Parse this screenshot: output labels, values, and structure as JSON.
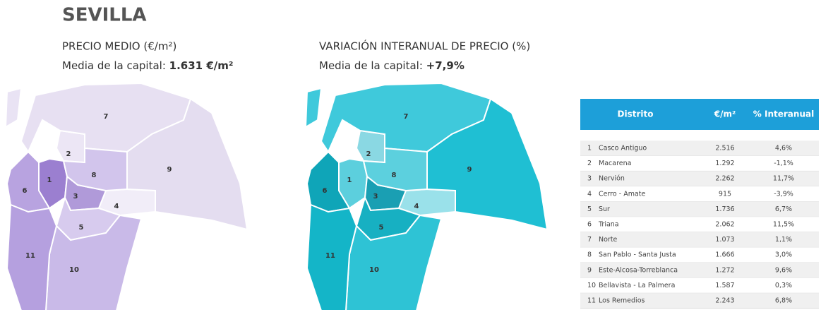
{
  "title": "SEVILLA",
  "price_map": {
    "heading": "PRECIO MEDIO (€/m²)",
    "avg_label": "Media de la capital:",
    "avg_value": "1.631 €/m²"
  },
  "variation_map": {
    "heading": "VARIACIÓN INTERANUAL DE PRECIO (%)",
    "avg_label": "Media de la capital:",
    "avg_value": "+7,9%"
  },
  "district_numbers": [
    "1",
    "2",
    "3",
    "4",
    "5",
    "6",
    "7",
    "8",
    "9",
    "10",
    "11"
  ],
  "table": {
    "headers": [
      "Distrito",
      "€/m²",
      "% Interanual"
    ],
    "rows": [
      [
        "Casco Antiguo",
        "2.516",
        "4,6%"
      ],
      [
        "Macarena",
        "1.292",
        "-1,1%"
      ],
      [
        "Nervión",
        "2.262",
        "11,7%"
      ],
      [
        "Cerro - Amate",
        "915",
        "-3,9%"
      ],
      [
        "Sur",
        "1.736",
        "6,7%"
      ],
      [
        "Triana",
        "2.062",
        "11,5%"
      ],
      [
        "Norte",
        "1.073",
        "1,1%"
      ],
      [
        "San Pablo - Santa Justa",
        "1.666",
        "3,0%"
      ],
      [
        "Este-Alcosa-Torreblanca",
        "1.272",
        "9,6%"
      ],
      [
        "Bellavista - La Palmera",
        "1.587",
        "0,3%"
      ],
      [
        "Los Remedios",
        "2.243",
        "6,8%"
      ]
    ]
  }
}
